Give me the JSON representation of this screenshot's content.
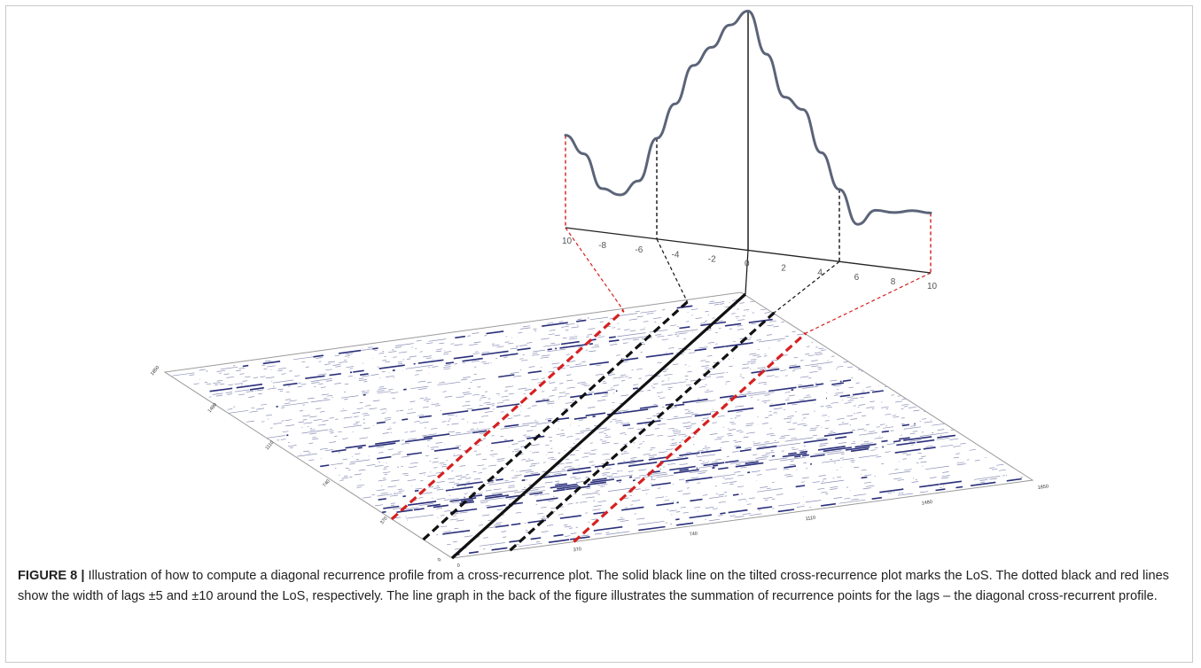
{
  "figure": {
    "caption_label": "FIGURE 8 |",
    "caption_text": " Illustration of how to compute a diagonal recurrence profile from a cross-recurrence plot. The solid black line on the tilted cross-recurrence plot marks the LoS. The dotted black and red lines show the width of lags ±5 and ±10 around the LoS, respectively. The line graph in the back of the figure illustrates the summation of recurrence points for the lags – the diagonal cross-recurrent profile."
  },
  "profile": {
    "tick_labels": [
      "10",
      "-8",
      "-6",
      "-4",
      "-2",
      "0",
      "2",
      "4",
      "6",
      "8",
      "10"
    ],
    "lags": [
      -10,
      -9,
      -8,
      -7,
      -6,
      -5,
      -4,
      -3,
      -2,
      -1,
      0,
      1,
      2,
      3,
      4,
      5,
      6,
      7,
      8,
      9,
      10
    ],
    "values": [
      0.28,
      0.2,
      0.04,
      0.02,
      0.1,
      0.32,
      0.5,
      0.7,
      0.8,
      0.92,
      1.0,
      0.8,
      0.6,
      0.55,
      0.35,
      0.18,
      0.02,
      0.1,
      0.1,
      0.12,
      0.12
    ],
    "colors": {
      "line": "#5b6478",
      "los": "#111111",
      "lag5": "#111111",
      "lag10": "#d62020"
    }
  },
  "crp": {
    "bottom_ticks": [
      "0",
      "370",
      "740",
      "1110",
      "1480",
      "1850"
    ],
    "left_ticks": [
      "0",
      "370",
      "740",
      "1110",
      "1480",
      "1850"
    ],
    "colors": {
      "recurrence": "#2a2f7a"
    }
  }
}
